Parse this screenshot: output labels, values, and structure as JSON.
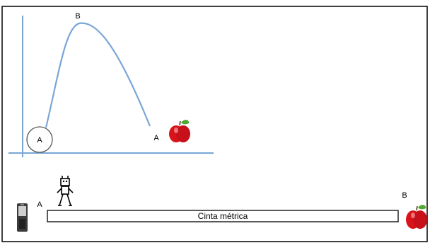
{
  "graph": {
    "peak_label": "B",
    "start_label": "A",
    "end_label": "A"
  },
  "ruler": {
    "left_label": "A",
    "right_label": "B",
    "tape_text": "Cinta métrica"
  },
  "colors": {
    "curve": "#7aa6d6",
    "axis": "#7aa6d6",
    "frame": "#000000",
    "apple": "#d8141a",
    "leaf": "#4ea832"
  }
}
